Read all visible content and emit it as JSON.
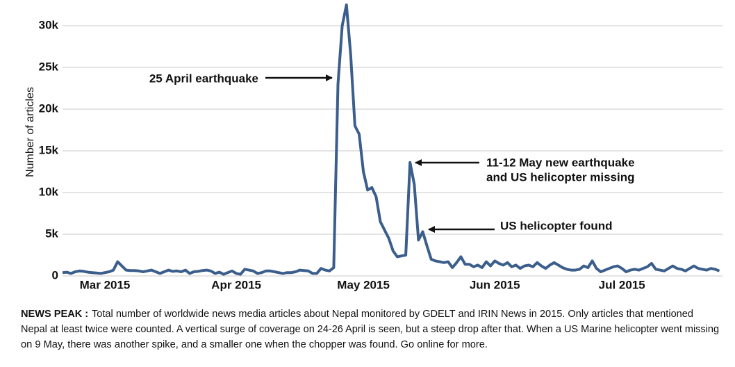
{
  "chart_data": {
    "type": "line",
    "y_label": "Number of articles",
    "categories": [
      null,
      null,
      null,
      null,
      null,
      null,
      null,
      null,
      null,
      null,
      "Mar 2015",
      null,
      null,
      null,
      null,
      null,
      null,
      null,
      null,
      null,
      null,
      null,
      null,
      null,
      null,
      null,
      null,
      null,
      null,
      null,
      null,
      null,
      null,
      null,
      null,
      null,
      null,
      null,
      null,
      null,
      null,
      "Apr 2015",
      null,
      null,
      null,
      null,
      null,
      null,
      null,
      null,
      null,
      null,
      null,
      null,
      null,
      null,
      null,
      null,
      null,
      null,
      null,
      null,
      null,
      null,
      null,
      null,
      null,
      null,
      null,
      null,
      null,
      "May 2015",
      null,
      null,
      null,
      null,
      null,
      null,
      null,
      null,
      null,
      null,
      null,
      null,
      null,
      null,
      null,
      null,
      null,
      null,
      null,
      null,
      null,
      null,
      null,
      null,
      null,
      null,
      null,
      null,
      null,
      null,
      "Jun 2015",
      null,
      null,
      null,
      null,
      null,
      null,
      null,
      null,
      null,
      null,
      null,
      null,
      null,
      null,
      null,
      null,
      null,
      null,
      null,
      null,
      null,
      null,
      null,
      null,
      null,
      null,
      null,
      null,
      null,
      "Jul 2015",
      null,
      null,
      null,
      null,
      null,
      null,
      null,
      null,
      null,
      null,
      null,
      null,
      null,
      null,
      null,
      null,
      null,
      null,
      null,
      null,
      null,
      null,
      null
    ],
    "series": [
      {
        "name": "Articles",
        "color": "#3b5e8c",
        "values": [
          400,
          450,
          300,
          500,
          600,
          550,
          450,
          400,
          350,
          300,
          400,
          500,
          700,
          1700,
          1200,
          700,
          650,
          650,
          600,
          500,
          600,
          700,
          500,
          300,
          500,
          700,
          550,
          600,
          500,
          700,
          300,
          500,
          550,
          650,
          700,
          600,
          300,
          450,
          200,
          400,
          600,
          300,
          200,
          800,
          700,
          600,
          300,
          400,
          600,
          600,
          500,
          400,
          300,
          400,
          400,
          500,
          700,
          650,
          600,
          300,
          300,
          900,
          700,
          600,
          1000,
          23000,
          30000,
          32500,
          26500,
          18000,
          17000,
          12500,
          10300,
          10600,
          9500,
          6500,
          5500,
          4500,
          3000,
          2300,
          2400,
          2500,
          13600,
          11000,
          4300,
          5300,
          3600,
          2000,
          1800,
          1700,
          1600,
          1700,
          1000,
          1600,
          2300,
          1400,
          1400,
          1100,
          1300,
          1000,
          1700,
          1200,
          1800,
          1500,
          1300,
          1600,
          1100,
          1300,
          900,
          1200,
          1300,
          1100,
          1600,
          1200,
          900,
          1300,
          1600,
          1300,
          1000,
          800,
          700,
          700,
          800,
          1200,
          1000,
          1800,
          900,
          500,
          700,
          900,
          1100,
          1200,
          900,
          500,
          700,
          800,
          700,
          900,
          1100,
          1500,
          800,
          700,
          600,
          900,
          1200,
          900,
          800,
          600,
          900,
          1200,
          900,
          800,
          700,
          900,
          800,
          600
        ]
      }
    ],
    "ylim": [
      0,
      33000
    ],
    "yticks": [
      0,
      {
        "value": 5000,
        "label": "5k"
      },
      {
        "value": 10000,
        "label": "10k"
      },
      {
        "value": 15000,
        "label": "15k"
      },
      {
        "value": 20000,
        "label": "20k"
      },
      {
        "value": 25000,
        "label": "25k"
      },
      {
        "value": 30000,
        "label": "30k"
      }
    ],
    "grid": true,
    "annotations": [
      {
        "lines": [
          "25 April earthquake"
        ]
      },
      {
        "lines": [
          "11-12 May new earthquake",
          "and US helicopter missing"
        ]
      },
      {
        "lines": [
          "US helicopter found"
        ]
      }
    ],
    "caption_title": "NEWS PEAK :",
    "caption_lines": [
      "Total number of worldwide news media articles about Nepal monitored by GDELT and IRIN News in 2015. Only articles that mentioned",
      "Nepal at least twice were counted. A vertical surge of coverage on 24-26 April is seen, but a steep drop after that. When a US Marine helicopter went missing",
      "on 9 May, there was another spike, and a smaller one when the chopper was found. Go online for more."
    ]
  }
}
